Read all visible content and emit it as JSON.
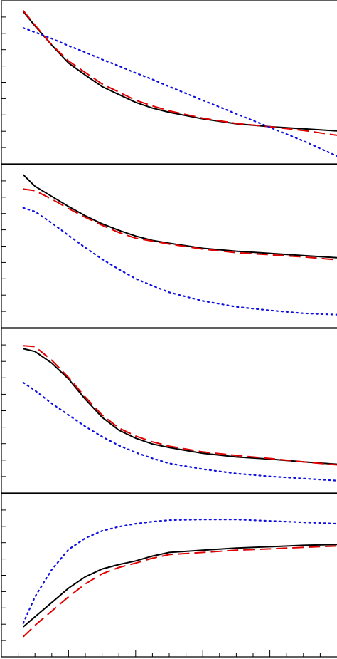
{
  "chart_data": [
    {
      "type": "line",
      "xlim": [
        0,
        20
      ],
      "ylim": [
        0,
        100
      ],
      "yticks": [
        10,
        20,
        30,
        40,
        50,
        60,
        70,
        80,
        90
      ],
      "x": [
        1.3,
        2,
        3,
        4,
        5,
        6,
        7,
        8,
        9,
        10,
        12,
        14,
        16,
        18,
        20
      ],
      "series": [
        {
          "color": "#000000",
          "dash": "solid",
          "values": [
            93.4,
            84.6,
            72.8,
            61.8,
            54.4,
            47.4,
            42.5,
            37.7,
            34.2,
            31.6,
            27.6,
            24.6,
            22.8,
            21.5,
            20.2
          ]
        },
        {
          "color": "#e00000",
          "dash": "dashed",
          "values": [
            94,
            85,
            73,
            63,
            56,
            49,
            44,
            39,
            35.5,
            32.5,
            28,
            24.8,
            22.8,
            20.5,
            17.5
          ]
        },
        {
          "color": "#1010e0",
          "dash": "dotted",
          "values": [
            83.3,
            80.7,
            76.8,
            72.4,
            68.4,
            64,
            60,
            55.7,
            51.8,
            47.4,
            39,
            30.7,
            22.4,
            14,
            4.8
          ]
        }
      ]
    },
    {
      "type": "line",
      "xlim": [
        0,
        20
      ],
      "ylim": [
        0,
        100
      ],
      "yticks": [
        10,
        20,
        30,
        40,
        50,
        60,
        70,
        80,
        90
      ],
      "x": [
        1.3,
        2,
        3,
        4,
        5,
        6,
        7,
        8,
        9,
        10,
        12,
        14,
        16,
        18,
        20
      ],
      "series": [
        {
          "color": "#000000",
          "dash": "solid",
          "values": [
            93.8,
            86.7,
            80.5,
            74.3,
            68.6,
            63.7,
            59.7,
            56.2,
            53.5,
            51.8,
            48.7,
            46.9,
            45.6,
            44.2,
            42.9
          ]
        },
        {
          "color": "#e00000",
          "dash": "dashed",
          "values": [
            85,
            84,
            78.8,
            73,
            67.7,
            62.8,
            58.4,
            54.9,
            53.1,
            51.3,
            48.2,
            46,
            44.7,
            43.4,
            41.6
          ]
        },
        {
          "color": "#1010e0",
          "dash": "dotted",
          "values": [
            73.5,
            71.2,
            64.2,
            56.6,
            49.1,
            42,
            35.8,
            30.1,
            25.7,
            21.7,
            16.4,
            12.8,
            10.6,
            8.8,
            8
          ]
        }
      ]
    },
    {
      "type": "line",
      "xlim": [
        0,
        20
      ],
      "ylim": [
        0,
        100
      ],
      "yticks": [
        10,
        20,
        30,
        40,
        50,
        60,
        70,
        80,
        90
      ],
      "x": [
        1.3,
        2,
        3,
        4,
        5,
        6,
        7,
        8,
        9,
        10,
        12,
        14,
        16,
        18,
        20
      ],
      "series": [
        {
          "color": "#000000",
          "dash": "solid",
          "values": [
            87.7,
            86,
            78.9,
            69.3,
            57,
            46,
            38.2,
            33.3,
            29.8,
            27.6,
            24.1,
            21.9,
            20.6,
            18.9,
            17.5
          ]
        },
        {
          "color": "#e00000",
          "dash": "dashed",
          "values": [
            89.5,
            89,
            80.7,
            70.2,
            58.3,
            47.4,
            39.5,
            34.6,
            31.1,
            28.5,
            25,
            22.8,
            21,
            18.9,
            17.1
          ]
        },
        {
          "color": "#1010e0",
          "dash": "dotted",
          "values": [
            67.1,
            62.3,
            54.4,
            47.4,
            40.4,
            34.2,
            28.9,
            24.6,
            21.1,
            18,
            14.5,
            11.8,
            10.1,
            8.8,
            7.5
          ]
        }
      ]
    },
    {
      "type": "line",
      "xlim": [
        0,
        20
      ],
      "ylim": [
        0,
        100
      ],
      "yticks": [
        10,
        20,
        30,
        40,
        50,
        60,
        70,
        80,
        90
      ],
      "xticks": [
        1,
        2,
        3,
        4,
        5,
        6,
        7,
        8,
        9,
        10,
        11,
        12,
        13,
        14,
        15,
        16,
        17,
        18,
        19
      ],
      "x": [
        1.3,
        2,
        3,
        4,
        5,
        6,
        7,
        8,
        9,
        10,
        12,
        14,
        16,
        18,
        20
      ],
      "series": [
        {
          "color": "#000000",
          "dash": "solid",
          "values": [
            18.4,
            24.6,
            33.3,
            42.1,
            49.1,
            53.9,
            56.6,
            58.8,
            61.8,
            64,
            65.4,
            66.7,
            67.5,
            68.4,
            68.9
          ]
        },
        {
          "color": "#e00000",
          "dash": "dashed",
          "values": [
            12.3,
            19.3,
            28.1,
            36.8,
            44.7,
            50.9,
            54.8,
            57.5,
            60.5,
            62.7,
            64,
            65.4,
            66.2,
            67.1,
            68
          ]
        },
        {
          "color": "#1010e0",
          "dash": "dotted",
          "values": [
            20.6,
            36.8,
            53.5,
            65.8,
            72.8,
            77.2,
            79.8,
            81.6,
            82.9,
            83.8,
            84.2,
            84.2,
            83.3,
            82.5,
            81.6
          ]
        }
      ]
    }
  ]
}
